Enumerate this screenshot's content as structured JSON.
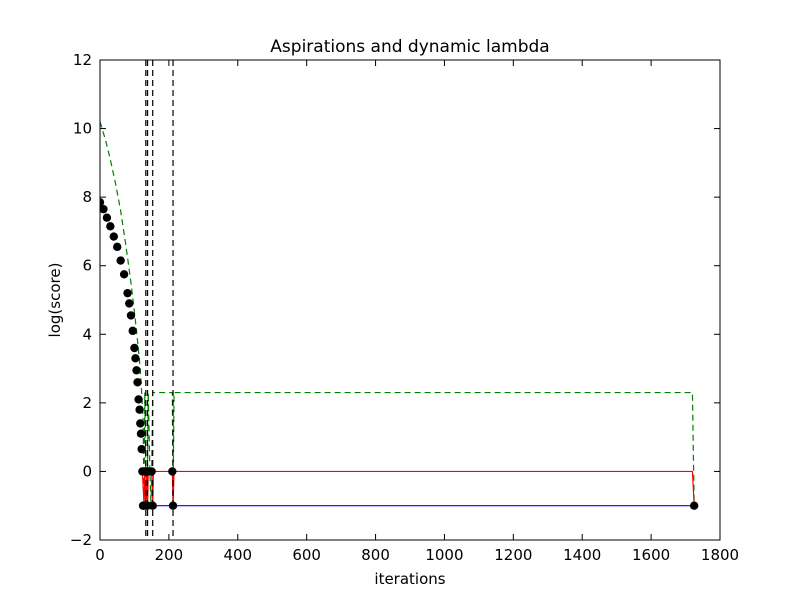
{
  "chart_data": {
    "type": "line",
    "title": "Aspirations and dynamic lambda",
    "xlabel": "iterations",
    "ylabel": "log(score)",
    "xlim": [
      0,
      1800
    ],
    "ylim": [
      -2,
      12
    ],
    "x_ticks": [
      0,
      200,
      400,
      600,
      800,
      1000,
      1200,
      1400,
      1600,
      1800
    ],
    "y_ticks": [
      -2,
      0,
      2,
      4,
      6,
      8,
      10,
      12
    ],
    "x_tick_labels": [
      "0",
      "200",
      "400",
      "600",
      "800",
      "1000",
      "1200",
      "1400",
      "1600",
      "1800"
    ],
    "y_tick_labels": [
      "−2",
      "0",
      "2",
      "4",
      "6",
      "8",
      "10",
      "12"
    ],
    "grid": false,
    "legend": "none",
    "colors": {
      "score_points": "#000000",
      "aspiration_dashed": "#008000",
      "red_line": "#ff0000",
      "blue_line": "#0000ff",
      "vertical_dashed": "#000000"
    },
    "series": [
      {
        "style": "black-dots",
        "x": [
          0,
          10,
          20,
          30,
          40,
          50,
          60,
          70,
          80,
          85,
          90,
          95,
          100,
          103,
          106,
          109,
          112,
          115,
          117,
          119,
          121,
          123,
          125,
          126,
          127,
          130,
          133,
          136,
          138,
          140,
          150,
          153,
          210,
          212,
          1725
        ],
        "y": [
          7.85,
          7.65,
          7.4,
          7.15,
          6.85,
          6.55,
          6.15,
          5.75,
          5.2,
          4.9,
          4.55,
          4.1,
          3.6,
          3.3,
          2.95,
          2.6,
          2.1,
          1.8,
          1.4,
          1.1,
          0.65,
          0.0,
          -1.0,
          0.0,
          -1.0,
          0.0,
          -1.0,
          0.0,
          -1.0,
          0.0,
          0.0,
          -1.0,
          0.0,
          -1.0,
          -1.0
        ]
      },
      {
        "style": "green-dashed",
        "x": [
          0,
          15,
          30,
          45,
          60,
          75,
          90,
          105,
          115,
          120,
          125,
          128,
          130,
          133,
          136,
          138,
          140,
          145,
          148,
          150,
          153,
          155,
          210,
          212,
          215,
          1720,
          1725
        ],
        "y": [
          10.2,
          9.7,
          9.1,
          8.4,
          7.6,
          6.6,
          5.5,
          4.2,
          3.2,
          2.5,
          1.5,
          -1.0,
          2.3,
          0.0,
          -1.0,
          0.0,
          2.3,
          0.0,
          -1.0,
          0.0,
          2.3,
          2.3,
          2.3,
          -1.0,
          2.3,
          2.3,
          -1.0
        ]
      },
      {
        "style": "red-solid",
        "x": [
          123,
          128,
          130,
          133,
          136,
          138,
          140,
          150,
          153,
          155,
          210,
          212,
          215,
          1720,
          1725
        ],
        "y": [
          0.0,
          -1.0,
          0.0,
          -1.0,
          0.0,
          -1.0,
          0.0,
          0.0,
          -1.0,
          0.0,
          0.0,
          -1.0,
          0.0,
          0.0,
          -1.0
        ]
      },
      {
        "style": "blue-solid",
        "x": [
          123,
          1725
        ],
        "y": [
          -1.0,
          -1.0
        ]
      }
    ],
    "vlines": [
      {
        "x": 133
      },
      {
        "x": 138
      },
      {
        "x": 153
      },
      {
        "x": 212
      }
    ]
  }
}
